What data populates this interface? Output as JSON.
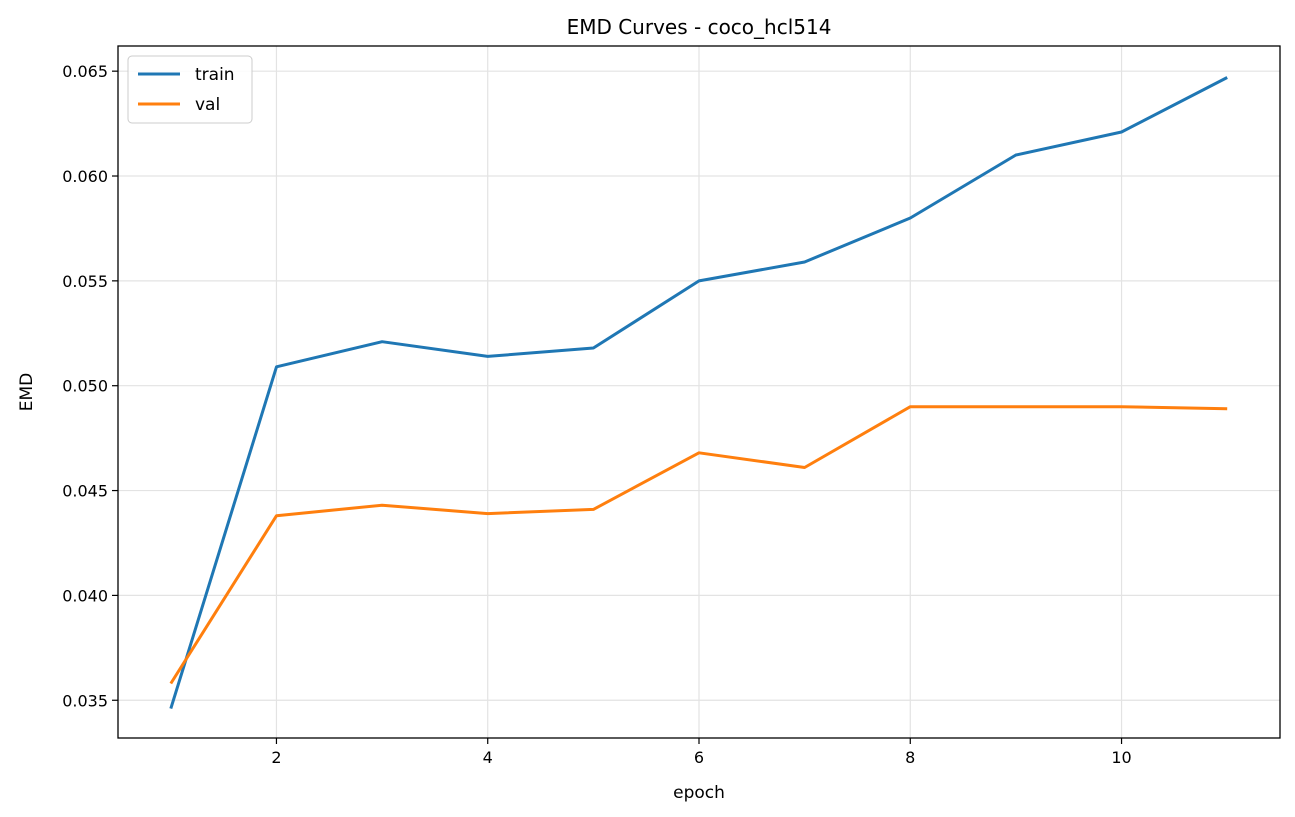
{
  "chart_data": {
    "type": "line",
    "title": "EMD Curves - coco_hcl514",
    "xlabel": "epoch",
    "ylabel": "EMD",
    "xlim": [
      0.5,
      11.5
    ],
    "ylim": [
      0.0332,
      0.0662
    ],
    "xticks": [
      2,
      4,
      6,
      8,
      10
    ],
    "yticks": [
      0.035,
      0.04,
      0.045,
      0.05,
      0.055,
      0.06,
      0.065
    ],
    "ytick_labels": [
      "0.035",
      "0.040",
      "0.045",
      "0.050",
      "0.055",
      "0.060",
      "0.065"
    ],
    "grid": true,
    "legend_position": "top-left",
    "x": [
      1,
      2,
      3,
      4,
      5,
      6,
      7,
      8,
      9,
      10,
      11
    ],
    "series": [
      {
        "name": "train",
        "color": "#1f77b4",
        "values": [
          0.0346,
          0.0509,
          0.0521,
          0.0514,
          0.0518,
          0.055,
          0.0559,
          0.058,
          0.061,
          0.0621,
          0.0647
        ]
      },
      {
        "name": "val",
        "color": "#ff7f0e",
        "values": [
          0.0358,
          0.0438,
          0.0443,
          0.0439,
          0.0441,
          0.0468,
          0.0461,
          0.049,
          0.049,
          0.049,
          0.0489
        ]
      }
    ]
  }
}
